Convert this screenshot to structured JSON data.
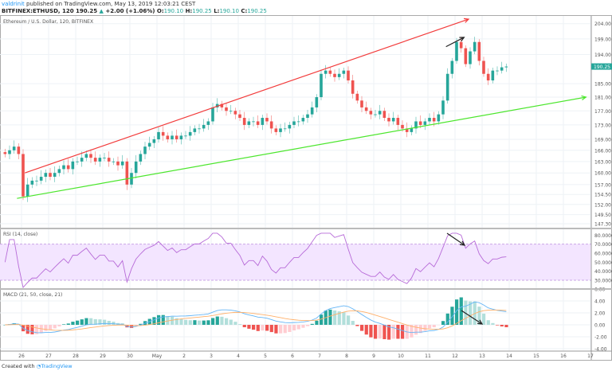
{
  "header": {
    "user": "valdrinit",
    "published": "published on TradingView.com, May 13, 2019 12:03:21 CEST",
    "symbol": "BITFINEX:ETHUSD, 120",
    "last": "190.25",
    "change_icon": "triangle-up-icon",
    "change": "+2.00 (+1.06%)",
    "o_label": "O:",
    "o": "190.10",
    "h_label": "H:",
    "h": "190.25",
    "l_label": "L:",
    "l": "190.10",
    "c_label": "C:",
    "c": "190.25"
  },
  "footer": {
    "created": "Created with",
    "brand": "TradingView",
    "logo_icon": "tradingview-logo-icon"
  },
  "colors": {
    "up": "#26a69a",
    "down": "#ef5350",
    "resistance": "#f23b3b",
    "support": "#4ce62d",
    "rsi": "#b76bd8",
    "rsi_band": "#f3e5ff",
    "macd": "#64b5f6",
    "signal": "#ffb06a"
  },
  "chart_data": {
    "type": "candlestick",
    "panes": [
      {
        "title": "Ethereum / U.S. Dollar, 120, BITFINEX",
        "scale": "log",
        "y_ticks": [
          "204.00",
          "199.00",
          "194.00",
          "185.00",
          "181.00",
          "177.00",
          "173.00",
          "169.00",
          "166.00",
          "163.00",
          "160.00",
          "157.00",
          "154.50",
          "152.00",
          "149.50",
          "147.30"
        ],
        "last_price_tag": "190.25"
      },
      {
        "title": "RSI (14, close)",
        "y_ticks": [
          "80.0000",
          "70.0000",
          "60.0000",
          "50.0000",
          "40.0000",
          "30.0000"
        ],
        "band": [
          30,
          70
        ]
      },
      {
        "title": "MACD (21, 50, close, 21)",
        "y_ticks": [
          "6.00",
          "4.00",
          "2.00",
          "0.00",
          "-2.00",
          "-4.00"
        ]
      }
    ],
    "x_ticks": [
      "26",
      "27",
      "28",
      "29",
      "30",
      "May",
      "2",
      "3",
      "4",
      "5",
      "6",
      "7",
      "8",
      "9",
      "10",
      "11",
      "12",
      "13",
      "14",
      "15",
      "16",
      "17"
    ],
    "closes_by_day": {
      "Apr 25": [
        165,
        166,
        167,
        165
      ],
      "Apr 26": [
        154,
        157,
        158,
        158,
        159,
        160
      ],
      "Apr 27": [
        159,
        160,
        161,
        162,
        161,
        163
      ],
      "Apr 28": [
        163,
        164,
        165,
        164,
        163,
        164
      ],
      "Apr 29": [
        164,
        163,
        163,
        162,
        163,
        157
      ],
      "Apr 30": [
        160,
        163,
        165,
        167,
        168,
        169
      ],
      "May 1": [
        171,
        170,
        169,
        170,
        169,
        170
      ],
      "May 2": [
        170,
        171,
        172,
        172,
        173,
        174
      ],
      "May 3": [
        178,
        179,
        178,
        177,
        177,
        176
      ],
      "May 4": [
        175,
        173,
        174,
        174,
        173,
        175
      ],
      "May 5": [
        174,
        172,
        171,
        172,
        172,
        173
      ],
      "May 6": [
        174,
        174,
        175,
        176,
        178,
        181
      ],
      "May 7": [
        188,
        189,
        188,
        187,
        188,
        189
      ],
      "May 8": [
        186,
        182,
        180,
        178,
        177,
        176
      ],
      "May 9": [
        176,
        177,
        175,
        174,
        175,
        173
      ],
      "May 10": [
        172,
        171,
        172,
        174,
        173,
        174
      ],
      "May 11": [
        175,
        174,
        176,
        180,
        188,
        192
      ],
      "May 12": [
        198,
        196,
        191,
        195,
        198,
        192
      ],
      "May 13": [
        188,
        186,
        189,
        189,
        190,
        190.25
      ]
    },
    "drawings": [
      {
        "name": "resistance-trendline",
        "color": "#f23b3b",
        "from": [
          "Apr 26 03:00",
          160
        ],
        "to": [
          "May 12 12:00",
          205.5
        ],
        "arrow": true
      },
      {
        "name": "support-trendline",
        "color": "#4ce62d",
        "from": [
          "Apr 25 20:00",
          153.5
        ],
        "to": [
          "May 16 20:00",
          181
        ],
        "arrow": true
      },
      {
        "name": "price-higher-high-arrow",
        "color": "#222222",
        "from": [
          "May 11 16:00",
          196.5
        ],
        "to": [
          "May 12 08:00",
          199.5
        ],
        "arrow": true
      }
    ]
  }
}
